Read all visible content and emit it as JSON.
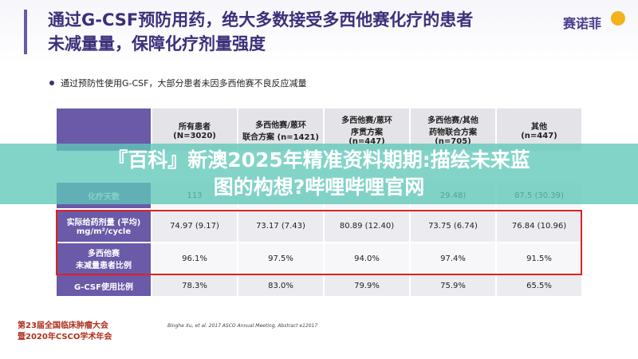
{
  "header": {
    "title_lines": [
      "通过G-CSF预防用药，绝大多数接受多西他赛化疗的患者",
      "未减量量，保障化疗剂量强度"
    ],
    "logo": "赛诺菲"
  },
  "bullet": "通过预防性使用G-CSF，大部分患者未因多西他赛不良反应减量",
  "table": {
    "columns": [
      [
        "所有患者",
        "(N=3020)"
      ],
      [
        "多西他赛/蒽环",
        "联合方案 (n=1421)"
      ],
      [
        "多西他赛/蒽环",
        "序贯方案",
        "(n=447)"
      ],
      [
        "多西他赛/其他",
        "药物联合方案",
        "(n=705)"
      ],
      [
        "其他",
        "(n=447)"
      ]
    ],
    "rows": [
      {
        "label": [
          "化疗天数"
        ],
        "cells": [
          "113",
          null,
          null,
          "29.48)",
          "87.5 (30.39)"
        ]
      },
      {
        "label": [
          "实际给药剂量 (平均)",
          "mg/m²/cycle"
        ],
        "cells": [
          "74.97 (9.17)",
          "73.17 (7.43)",
          "80.89 (12.40)",
          "73.75 (6.74)",
          "76.84 (10.96)"
        ]
      },
      {
        "label": [
          "多西他赛",
          "未减量患者比例"
        ],
        "cells": [
          "96.1%",
          "97.5%",
          "94.0%",
          "97.4%",
          "91.5%"
        ]
      },
      {
        "label": [
          "G-CSF使用比例"
        ],
        "cells": [
          "78.3%",
          "83.0%",
          "79.9%",
          "75.9%",
          "65.5%"
        ]
      }
    ]
  },
  "footnote": "Binghe Xu, et al. 2017 ASCO Annual Meeting, Abstract e12017",
  "conference": [
    "第23届全国临床肿瘤大会",
    "暨2020年CSCO学术年会"
  ],
  "banner": [
    "『百科』新澳2025年精准资料期期:描绘未来蓝",
    "图的构想?哔哩哔哩官网"
  ]
}
